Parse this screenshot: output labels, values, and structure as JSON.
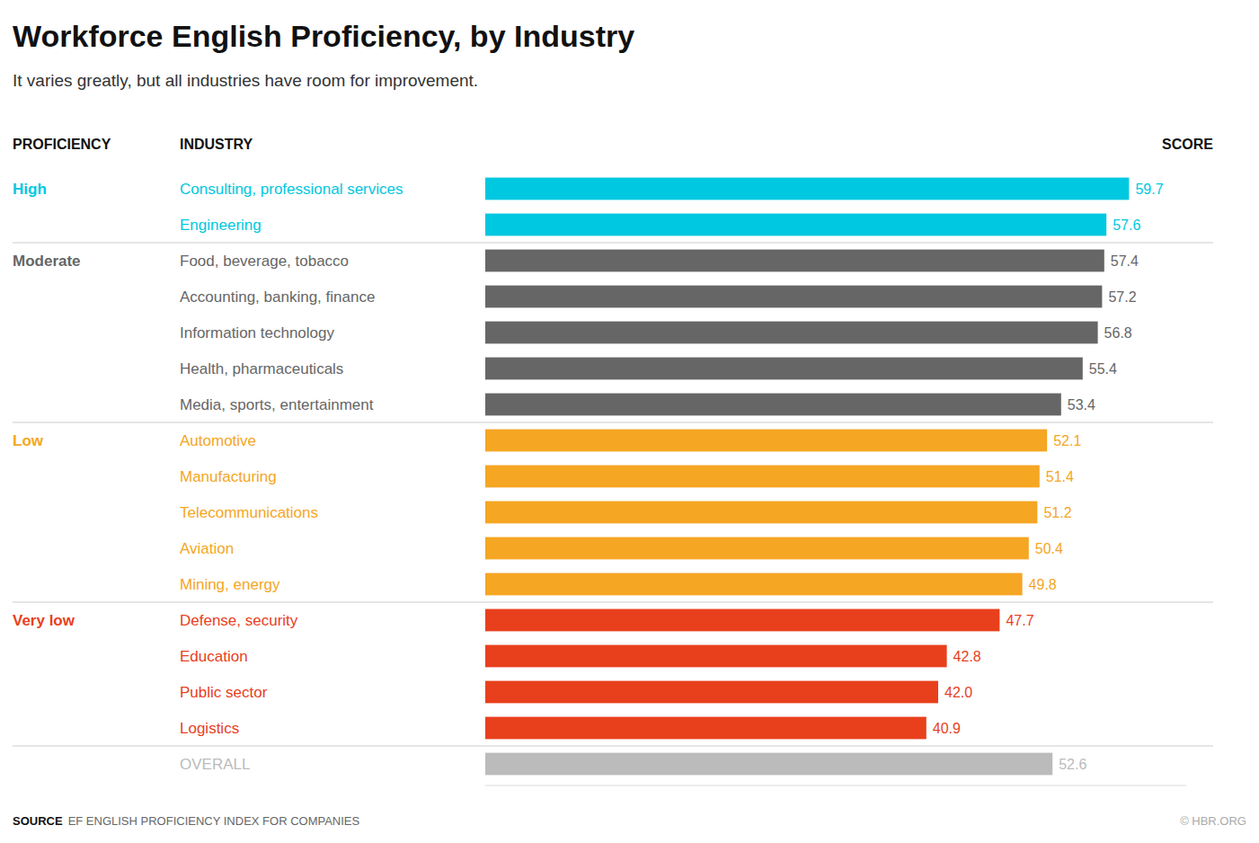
{
  "chart_data": {
    "type": "bar",
    "orientation": "horizontal",
    "title": "Workforce English Proficiency, by Industry",
    "subtitle": "It varies greatly, but all industries have room for improvement.",
    "column_labels": {
      "proficiency": "PROFICIENCY",
      "industry": "INDUSTRY",
      "score": "SCORE"
    },
    "categories": [
      "Consulting, professional services",
      "Engineering",
      "Food, beverage, tobacco",
      "Accounting, banking, finance",
      "Information technology",
      "Health, pharmaceuticals",
      "Media, sports, entertainment",
      "Automotive",
      "Manufacturing",
      "Telecommunications",
      "Aviation",
      "Mining, energy",
      "Defense, security",
      "Education",
      "Public sector",
      "Logistics",
      "OVERALL"
    ],
    "proficiency": [
      "High",
      null,
      "Moderate",
      null,
      null,
      null,
      null,
      "Low",
      null,
      null,
      null,
      null,
      "Very low",
      null,
      null,
      null,
      null
    ],
    "values": [
      59.7,
      57.6,
      57.4,
      57.2,
      56.8,
      55.4,
      53.4,
      52.1,
      51.4,
      51.2,
      50.4,
      49.8,
      47.7,
      42.8,
      42.0,
      40.9,
      52.6
    ],
    "value_labels": [
      "59.7",
      "57.6",
      "57.4",
      "57.2",
      "56.8",
      "55.4",
      "53.4",
      "52.1",
      "51.4",
      "51.2",
      "50.4",
      "49.8",
      "47.7",
      "42.8",
      "42.0",
      "40.9",
      "52.6"
    ],
    "colors": [
      "#00c8e0",
      "#00c8e0",
      "#666666",
      "#666666",
      "#666666",
      "#666666",
      "#666666",
      "#f5a623",
      "#f5a623",
      "#f5a623",
      "#f5a623",
      "#f5a623",
      "#e8401c",
      "#e8401c",
      "#e8401c",
      "#e8401c",
      "#bbbbbb"
    ],
    "separators_after": [
      1,
      6,
      11,
      15
    ],
    "xlim": [
      0,
      65
    ],
    "data_labels": true,
    "tick_labels": false,
    "source_label": "SOURCE",
    "source": "EF ENGLISH PROFICIENCY INDEX FOR COMPANIES",
    "credit": "© HBR.ORG"
  }
}
